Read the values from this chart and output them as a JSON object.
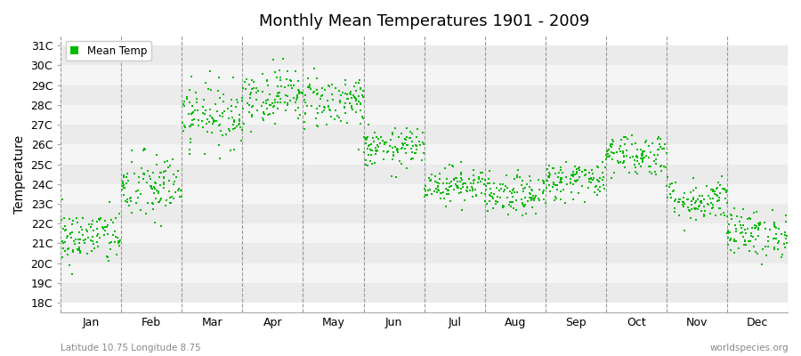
{
  "title": "Monthly Mean Temperatures 1901 - 2009",
  "ylabel": "Temperature",
  "xlabel_bottom": "Latitude 10.75 Longitude 8.75",
  "watermark": "worldspecies.org",
  "legend_label": "Mean Temp",
  "marker_color": "#00BB00",
  "background_color": "#FFFFFF",
  "plot_bg_color": "#FFFFFF",
  "band_colors": [
    "#EBEBEB",
    "#F5F5F5"
  ],
  "ylim": [
    17.5,
    31.5
  ],
  "yticks": [
    18,
    19,
    20,
    21,
    22,
    23,
    24,
    25,
    26,
    27,
    28,
    29,
    30,
    31
  ],
  "months": [
    "Jan",
    "Feb",
    "Mar",
    "Apr",
    "May",
    "Jun",
    "Jul",
    "Aug",
    "Sep",
    "Oct",
    "Nov",
    "Dec"
  ],
  "n_years": 109,
  "monthly_means": [
    21.3,
    23.8,
    27.5,
    28.5,
    28.2,
    25.8,
    24.0,
    23.4,
    24.2,
    25.5,
    23.2,
    21.5
  ],
  "monthly_stds": [
    0.7,
    0.9,
    0.8,
    0.7,
    0.7,
    0.5,
    0.45,
    0.5,
    0.5,
    0.55,
    0.55,
    0.6
  ],
  "seed": 42
}
